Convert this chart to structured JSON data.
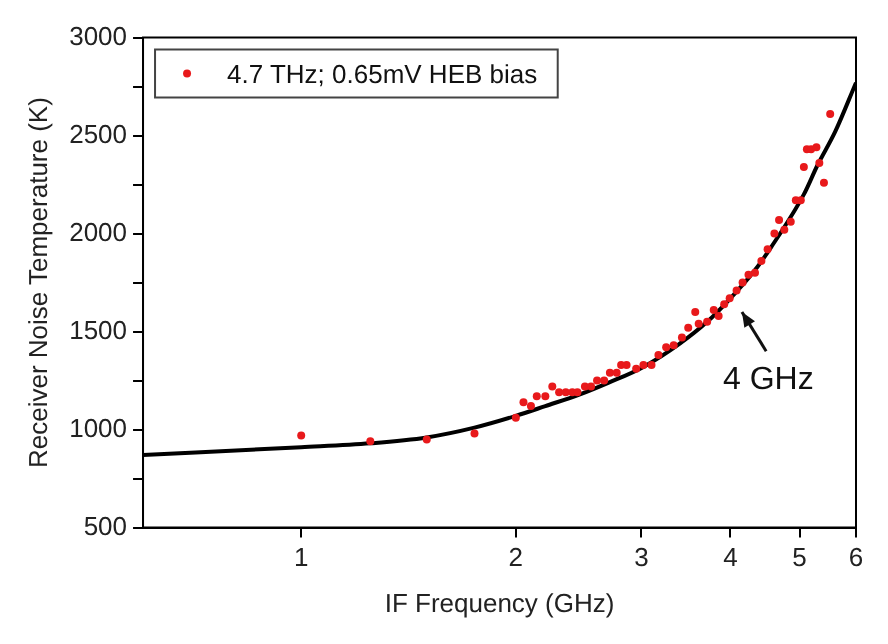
{
  "chart_data": {
    "type": "scatter",
    "xlabel": "IF Frequency (GHz)",
    "ylabel": "Receiver Noise Temperature (K)",
    "log": "x",
    "xlim": [
      0.6,
      6
    ],
    "xticks": [
      1,
      2,
      3,
      4,
      5,
      6
    ],
    "ylim": [
      500,
      3000
    ],
    "yticks": [
      500,
      {
        "value": 750,
        "label": null
      },
      1000,
      {
        "value": 1250,
        "label": null
      },
      1500,
      {
        "value": 1750,
        "label": null
      },
      2000,
      {
        "value": 2250,
        "label": null
      },
      2500,
      {
        "value": 2750,
        "label": null
      },
      3000
    ],
    "grid": false,
    "legend": "top left",
    "marker": "circle",
    "annotations": [
      "4 GHz"
    ],
    "series": [
      {
        "name": "4.7 THz; 0.65mV HEB bias",
        "color": "#e8191b",
        "x": [
          1,
          1.25,
          1.5,
          1.75,
          2,
          2.05,
          2.1,
          2.14,
          2.2,
          2.25,
          2.3,
          2.35,
          2.4,
          2.44,
          2.5,
          2.55,
          2.6,
          2.66,
          2.71,
          2.77,
          2.81,
          2.86,
          2.95,
          3.02,
          3.1,
          3.17,
          3.25,
          3.33,
          3.42,
          3.49,
          3.57,
          3.61,
          3.71,
          3.79,
          3.85,
          3.92,
          3.99,
          4.08,
          4.16,
          4.24,
          4.33,
          4.42,
          4.51,
          4.61,
          4.68,
          4.76,
          4.86,
          4.94,
          5.02,
          5.07,
          5.12,
          5.19,
          5.28,
          5.33,
          5.41,
          5.52
        ],
        "values": [
          970,
          940,
          950,
          980,
          1060,
          1140,
          1120,
          1170,
          1170,
          1220,
          1190,
          1190,
          1190,
          1190,
          1220,
          1220,
          1250,
          1250,
          1290,
          1290,
          1330,
          1330,
          1310,
          1330,
          1330,
          1380,
          1420,
          1430,
          1470,
          1520,
          1600,
          1540,
          1550,
          1610,
          1580,
          1640,
          1670,
          1710,
          1750,
          1790,
          1800,
          1860,
          1920,
          2000,
          2070,
          2020,
          2060,
          2170,
          2170,
          2340,
          2430,
          2430,
          2440,
          2360,
          2260,
          2610
        ]
      },
      {
        "type": "line",
        "color": "#000000",
        "marker": "none",
        "x": [
          0.6,
          1,
          1.25,
          1.5,
          1.75,
          2,
          2.2,
          2.46,
          2.7,
          3.02,
          3.4,
          3.71,
          4,
          4.3,
          4.56,
          5.07,
          5.3,
          5.61,
          6
        ],
        "values": [
          870,
          910,
          930,
          960,
          1010,
          1070,
          1120,
          1180,
          1240,
          1320,
          1440,
          1550,
          1670,
          1800,
          1930,
          2200,
          2350,
          2520,
          2770
        ]
      }
    ]
  }
}
